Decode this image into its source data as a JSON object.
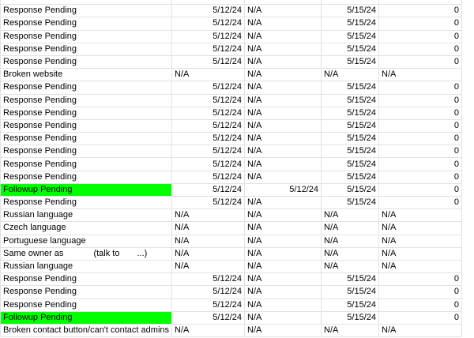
{
  "colors": {
    "highlight": "#00ff00",
    "gridline": "#e2e2e2"
  },
  "rows": [
    {
      "a": "",
      "b": "",
      "c": "",
      "d": "",
      "e": "",
      "partial": true
    },
    {
      "a": "Response Pending",
      "b": "5/12/24",
      "c": "N/A",
      "d": "5/15/24",
      "e": "0"
    },
    {
      "a": "Response Pending",
      "b": "5/12/24",
      "c": "N/A",
      "d": "5/15/24",
      "e": "0"
    },
    {
      "a": "Response Pending",
      "b": "5/12/24",
      "c": "N/A",
      "d": "5/15/24",
      "e": "0"
    },
    {
      "a": "Response Pending",
      "b": "5/12/24",
      "c": "N/A",
      "d": "5/15/24",
      "e": "0"
    },
    {
      "a": "Response Pending",
      "b": "5/12/24",
      "c": "N/A",
      "d": "5/15/24",
      "e": "0"
    },
    {
      "a": "Broken website",
      "b": "N/A",
      "c": "N/A",
      "d": "N/A",
      "e": "N/A",
      "na": true
    },
    {
      "a": "Response Pending",
      "b": "5/12/24",
      "c": "N/A",
      "d": "5/15/24",
      "e": "0"
    },
    {
      "a": "Response Pending",
      "b": "5/12/24",
      "c": "N/A",
      "d": "5/15/24",
      "e": "0"
    },
    {
      "a": "Response Pending",
      "b": "5/12/24",
      "c": "N/A",
      "d": "5/15/24",
      "e": "0"
    },
    {
      "a": "Response Pending",
      "b": "5/12/24",
      "c": "N/A",
      "d": "5/15/24",
      "e": "0"
    },
    {
      "a": "Response Pending",
      "b": "5/12/24",
      "c": "N/A",
      "d": "5/15/24",
      "e": "0"
    },
    {
      "a": "Response Pending",
      "b": "5/12/24",
      "c": "N/A",
      "d": "5/15/24",
      "e": "0"
    },
    {
      "a": "Response Pending",
      "b": "5/12/24",
      "c": "N/A",
      "d": "5/15/24",
      "e": "0"
    },
    {
      "a": "Response Pending",
      "b": "5/12/24",
      "c": "N/A",
      "d": "5/15/24",
      "e": "0"
    },
    {
      "a": "Followup Pending",
      "b": "5/12/24",
      "c": "5/12/24",
      "d": "5/15/24",
      "e": "0",
      "green": true,
      "cdate": true
    },
    {
      "a": "Response Pending",
      "b": "5/12/24",
      "c": "N/A",
      "d": "5/15/24",
      "e": "0"
    },
    {
      "a": "Russian language",
      "b": "N/A",
      "c": "N/A",
      "d": "N/A",
      "e": "N/A",
      "na": true
    },
    {
      "a": "Czech language",
      "b": "N/A",
      "c": "N/A",
      "d": "N/A",
      "e": "N/A",
      "na": true
    },
    {
      "a": "Portuguese language",
      "b": "N/A",
      "c": "N/A",
      "d": "N/A",
      "e": "N/A",
      "na": true
    },
    {
      "a": "Same owner as",
      "a2": "(talk to",
      "a3": "...)",
      "b": "N/A",
      "c": "N/A",
      "d": "N/A",
      "e": "N/A",
      "na": true
    },
    {
      "a": "Russian language",
      "b": "N/A",
      "c": "N/A",
      "d": "N/A",
      "e": "N/A",
      "na": true
    },
    {
      "a": "Response Pending",
      "b": "5/12/24",
      "c": "N/A",
      "d": "5/15/24",
      "e": "0"
    },
    {
      "a": "Response Pending",
      "b": "5/12/24",
      "c": "N/A",
      "d": "5/15/24",
      "e": "0"
    },
    {
      "a": "Response Pending",
      "b": "5/12/24",
      "c": "N/A",
      "d": "5/15/24",
      "e": "0"
    },
    {
      "a": "Followup Pending",
      "b": "5/12/24",
      "c": "N/A",
      "d": "5/15/24",
      "e": "0",
      "green": true
    },
    {
      "a": "Broken contact button/can't contact admins",
      "b": "N/A",
      "c": "N/A",
      "d": "N/A",
      "e": "N/A",
      "na": true
    }
  ]
}
